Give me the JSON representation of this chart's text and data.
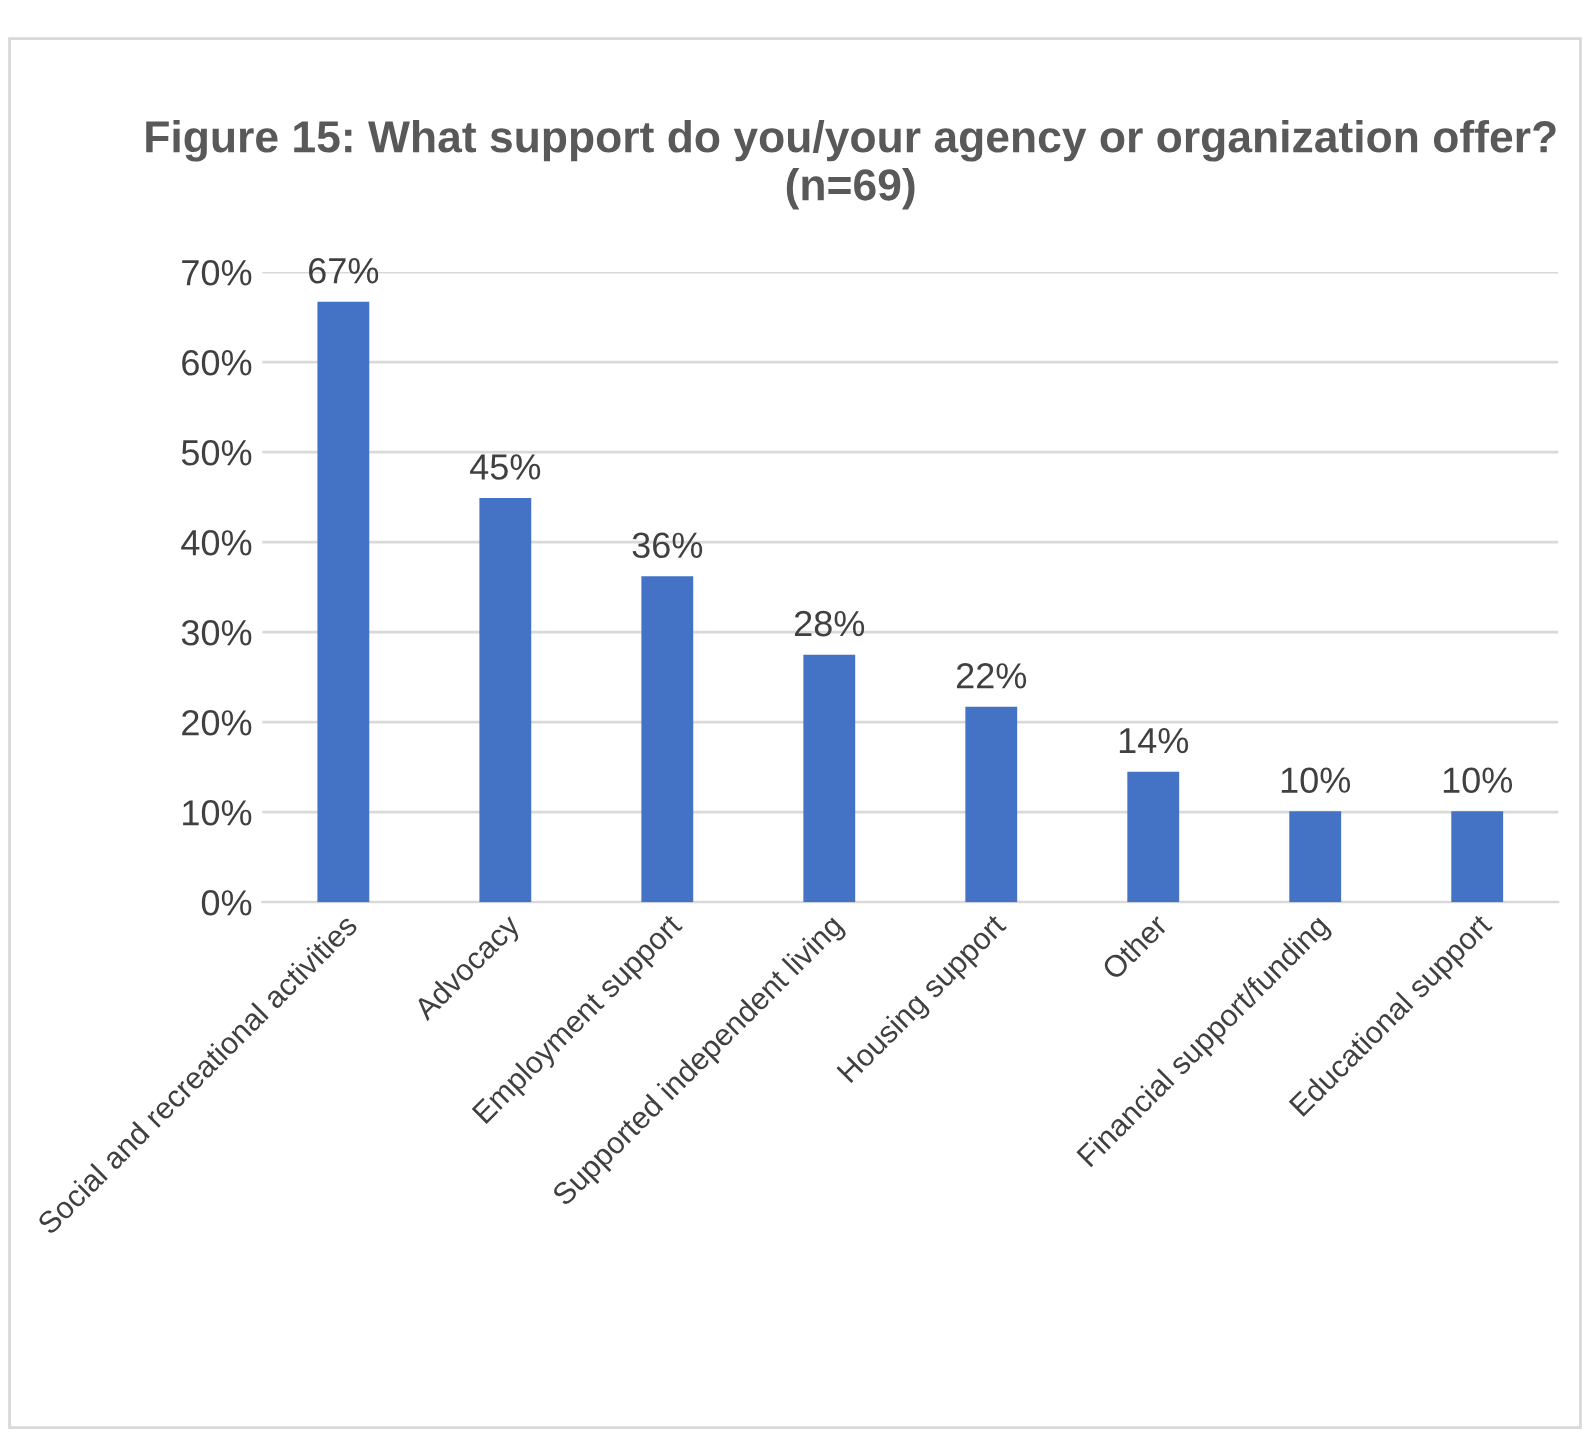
{
  "chart_data": {
    "type": "bar",
    "title": "Figure 15: What support do you/your agency or organization offer? (n=69)",
    "categories": [
      "Social and recreational activities",
      "Advocacy",
      "Employment support",
      "Supported independent living",
      "Housing support",
      "Other",
      "Financial support/funding",
      "Educational support"
    ],
    "values": [
      66.7,
      44.9,
      36.2,
      27.5,
      21.7,
      14.5,
      10.1,
      10.1
    ],
    "value_labels": [
      "67%",
      "45%",
      "36%",
      "28%",
      "22%",
      "14%",
      "10%",
      "10%"
    ],
    "color": "#4472c4",
    "ylim": [
      0,
      70
    ],
    "yticks": [
      {
        "value": 0,
        "label": "0%"
      },
      {
        "value": 10,
        "label": "10%"
      },
      {
        "value": 20,
        "label": "20%"
      },
      {
        "value": 30,
        "label": "30%"
      },
      {
        "value": 40,
        "label": "40%"
      },
      {
        "value": 50,
        "label": "50%"
      },
      {
        "value": 60,
        "label": "60%"
      },
      {
        "value": 70,
        "label": "70%"
      }
    ],
    "grid": "y"
  }
}
